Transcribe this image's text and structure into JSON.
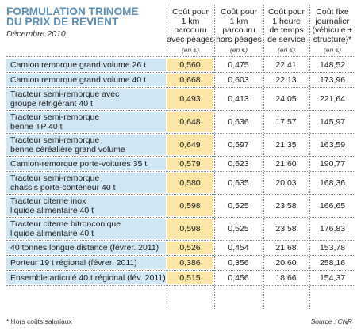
{
  "title_lines": [
    "FORMULATION TRINOME",
    "DU PRIX DE REVIENT"
  ],
  "subtitle": "Décembre 2010",
  "columns": [
    {
      "lines": [
        "Coût pour",
        "1 km",
        "parcouru",
        "avec péages"
      ],
      "unit": "(en €)"
    },
    {
      "lines": [
        "Coût pour",
        "1 km",
        "parcouru",
        "hors péages"
      ],
      "unit": "(en €)"
    },
    {
      "lines": [
        "Coût pour",
        "1 heure",
        "de temps",
        "de service"
      ],
      "unit": "(en €)"
    },
    {
      "lines": [
        "Coût fixe",
        "journalier",
        "(véhicule +",
        "structure)*"
      ],
      "unit": "(en €)"
    }
  ],
  "rows": [
    {
      "label": [
        "Camion remorque grand volume 26 t"
      ],
      "values": [
        "0,560",
        "0,475",
        "22,41",
        "148,52"
      ]
    },
    {
      "label": [
        "Camion remorque grand volume 40 t"
      ],
      "values": [
        "0,668",
        "0,603",
        "22,13",
        "173,96"
      ]
    },
    {
      "label": [
        "Tracteur semi-remorque avec",
        "groupe réfrigérant 40 t"
      ],
      "values": [
        "0,493",
        "0,413",
        "24,05",
        "221,64"
      ]
    },
    {
      "label": [
        "Tracteur semi-remorque",
        "benne TP 40 t"
      ],
      "values": [
        "0,648",
        "0,636",
        "17,57",
        "145,97"
      ]
    },
    {
      "label": [
        "Tracteur semi-remorque",
        "benne céréalière grand volume"
      ],
      "values": [
        "0,649",
        "0,597",
        "21,35",
        "163,59"
      ]
    },
    {
      "label": [
        "Camion-remorque porte-voitures 35 t"
      ],
      "values": [
        "0,579",
        "0,523",
        "21,60",
        "190,77"
      ]
    },
    {
      "label": [
        "Tracteur semi-remorque",
        "chassis porte-conteneur 40 t"
      ],
      "values": [
        "0,580",
        "0,535",
        "20,03",
        "168,36"
      ]
    },
    {
      "label": [
        "Tracteur citerne inox",
        "liquide alimentaire 40 t"
      ],
      "values": [
        "0,598",
        "0,525",
        "23,58",
        "166,65"
      ]
    },
    {
      "label": [
        "Tracteur citerne bitronconique",
        "liquide alimentaire 40 t"
      ],
      "values": [
        "0,598",
        "0,525",
        "23,58",
        "176,83"
      ]
    },
    {
      "label": [
        "40 tonnes longue distance (févrer. 2011)"
      ],
      "values": [
        "0,526",
        "0,454",
        "21,68",
        "153,78"
      ]
    },
    {
      "label": [
        "Porteur 19 t régional (févrer. 2011)"
      ],
      "values": [
        "0,386",
        "0,356",
        "20,60",
        "258,16"
      ]
    },
    {
      "label": [
        "Ensemble articulé 40 t régional (fév. 2011)"
      ],
      "values": [
        "0,515",
        "0,456",
        "18,66",
        "154,37"
      ]
    }
  ],
  "footnote": "* Hors coûts salariaux",
  "source": "Source : CNR",
  "colors": {
    "title": "#5a8fb8",
    "label_bg": "#cfe6f4",
    "highlight_bg": "#fbe6a6"
  }
}
